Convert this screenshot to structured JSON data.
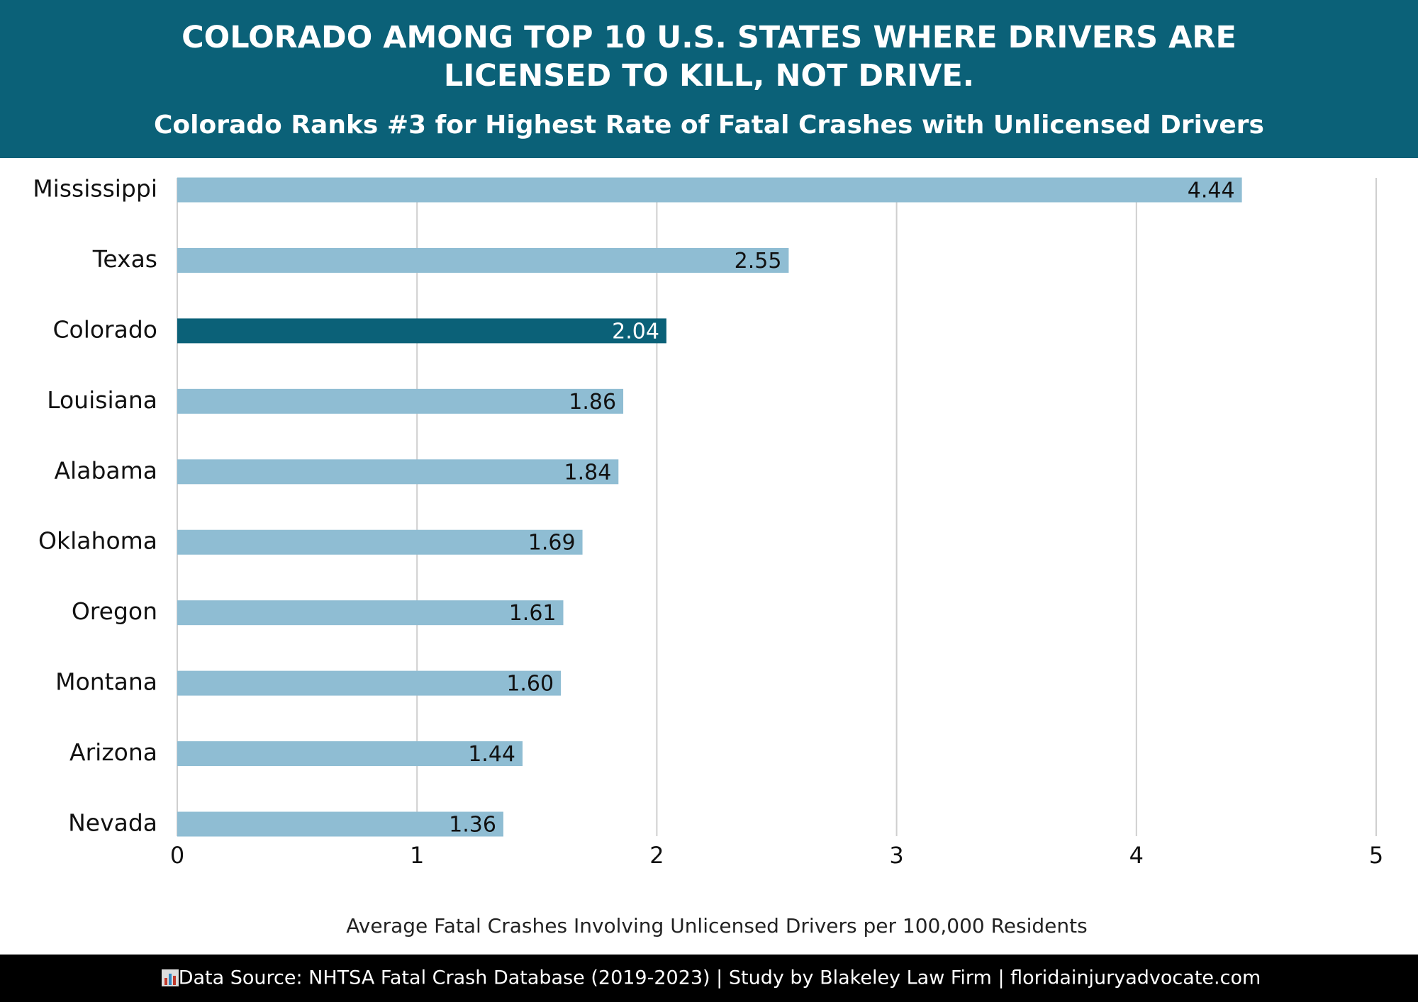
{
  "chart_data": {
    "type": "hbar",
    "title": "COLORADO AMONG TOP 10 U.S. STATES WHERE DRIVERS ARE LICENSED TO KILL, NOT DRIVE.",
    "subtitle": "Colorado Ranks #3 for Highest Rate of Fatal Crashes with Unlicensed Drivers",
    "categories": [
      "Mississippi",
      "Texas",
      "Colorado",
      "Louisiana",
      "Alabama",
      "Oklahoma",
      "Oregon",
      "Montana",
      "Arizona",
      "Nevada"
    ],
    "values": [
      4.44,
      2.55,
      2.04,
      1.86,
      1.84,
      1.69,
      1.61,
      1.6,
      1.44,
      1.36
    ],
    "value_labels": [
      "4.44",
      "2.55",
      "2.04",
      "1.86",
      "1.84",
      "1.69",
      "1.61",
      "1.60",
      "1.44",
      "1.36"
    ],
    "colors": [
      "#8fbdd3",
      "#8fbdd3",
      "#0b6178",
      "#8fbdd3",
      "#8fbdd3",
      "#8fbdd3",
      "#8fbdd3",
      "#8fbdd3",
      "#8fbdd3",
      "#8fbdd3"
    ],
    "xlim": [
      0,
      5
    ],
    "xticks": [
      0,
      1,
      2,
      3,
      4,
      5
    ],
    "grid": true,
    "xlabel": "Average Fatal Crashes Involving Unlicensed Drivers per 100,000 Residents",
    "source": "Data Source: NHTSA Fatal Crash Database (2019-2023) | Study by Blakeley Law Firm | floridainjuryadvocate.com"
  }
}
